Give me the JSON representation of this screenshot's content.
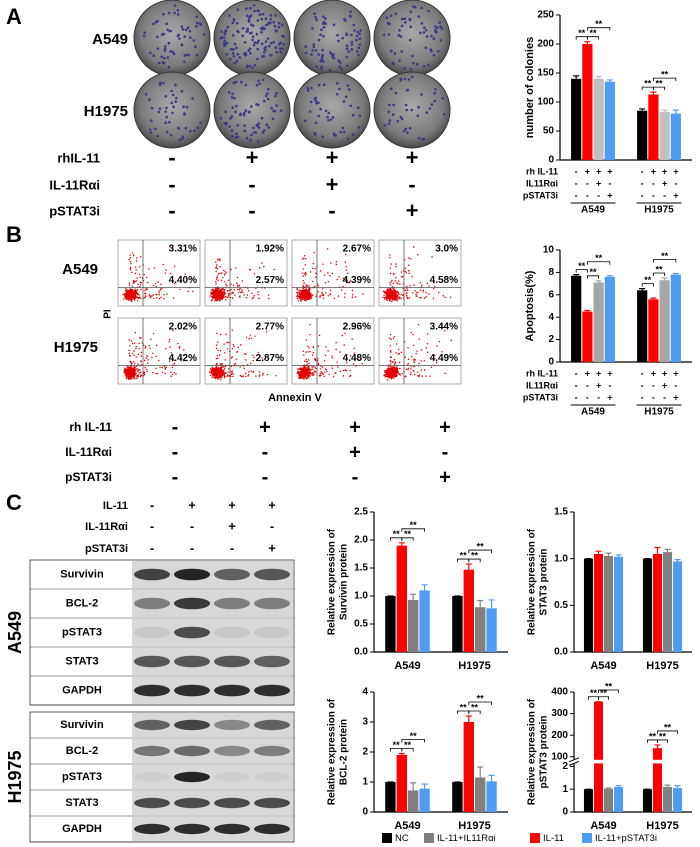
{
  "panel_a": {
    "label": "A",
    "rows": [
      "A549",
      "H1975"
    ],
    "treatments": [
      {
        "label": "rhIL-11",
        "signs": [
          "-",
          "+",
          "+",
          "+"
        ]
      },
      {
        "label": "IL-11Rαi",
        "signs": [
          "-",
          "-",
          "+",
          "-"
        ]
      },
      {
        "label": "pSTAT3i",
        "signs": [
          "-",
          "-",
          "-",
          "+"
        ]
      }
    ]
  },
  "panel_b": {
    "label": "B",
    "rows": [
      "A549",
      "H1975"
    ],
    "percentages": [
      [
        [
          "3.31%",
          "4.40%"
        ],
        [
          "1.92%",
          "2.57%"
        ],
        [
          "2.67%",
          "4.39%"
        ],
        [
          "3.0%",
          "4.58%"
        ]
      ],
      [
        [
          "2.02%",
          "4.42%"
        ],
        [
          "2.77%",
          "2.87%"
        ],
        [
          "2.96%",
          "4.48%"
        ],
        [
          "3.44%",
          "4.49%"
        ]
      ]
    ],
    "x_label": "Annexin V",
    "y_label": "PI",
    "treatments": [
      {
        "label": "rh IL-11",
        "signs": [
          "-",
          "+",
          "+",
          "+"
        ]
      },
      {
        "label": "IL-11Rαi",
        "signs": [
          "-",
          "-",
          "+",
          "-"
        ]
      },
      {
        "label": "pSTAT3i",
        "signs": [
          "-",
          "-",
          "-",
          "+"
        ]
      }
    ]
  },
  "panel_c": {
    "label": "C",
    "treatments": [
      {
        "label": "IL-11",
        "signs": [
          "-",
          "+",
          "+",
          "+"
        ]
      },
      {
        "label": "IL-11Rαi",
        "signs": [
          "-",
          "-",
          "+",
          "-"
        ]
      },
      {
        "label": "pSTAT3i",
        "signs": [
          "-",
          "-",
          "-",
          "+"
        ]
      }
    ],
    "blots": [
      {
        "cell_line": "A549",
        "bands": [
          "Survivin",
          "BCL-2",
          "pSTAT3",
          "STAT3",
          "GAPDH"
        ]
      },
      {
        "cell_line": "H1975",
        "bands": [
          "Survivin",
          "BCL-2",
          "pSTAT3",
          "STAT3",
          "GAPDH"
        ]
      }
    ]
  },
  "chart_data": [
    {
      "type": "bar",
      "y_label": [
        "number of colonies"
      ],
      "categories": [
        "A549",
        "H1975"
      ],
      "series": [
        {
          "color": "#000000",
          "values": [
            140,
            85
          ],
          "errors": [
            5,
            3
          ]
        },
        {
          "color": "#ff0000",
          "values": [
            200,
            113
          ],
          "errors": [
            4,
            4
          ]
        },
        {
          "color": "#c0c0c0",
          "values": [
            140,
            83
          ],
          "errors": [
            4,
            3
          ]
        },
        {
          "color": "#4f9cf5",
          "values": [
            135,
            80
          ],
          "errors": [
            3,
            6
          ]
        }
      ],
      "ylim": [
        0,
        250
      ],
      "yticks": [
        0,
        50,
        100,
        150,
        200,
        250
      ],
      "treatment_rows": [
        {
          "label": "rh IL-11",
          "signs": [
            "-",
            "+",
            "+",
            "+"
          ]
        },
        {
          "label": "IL11Rαi",
          "signs": [
            "-",
            "-",
            "+",
            "-"
          ]
        },
        {
          "label": "pSTAT3i",
          "signs": [
            "-",
            "-",
            "-",
            "+"
          ]
        }
      ],
      "significance": [
        {
          "label": "**",
          "category": "A549",
          "pair": [
            0,
            1
          ]
        },
        {
          "label": "**",
          "category": "A549",
          "pair": [
            1,
            2
          ]
        },
        {
          "label": "**",
          "category": "A549",
          "pair": [
            1,
            3
          ]
        },
        {
          "label": "**",
          "category": "H1975",
          "pair": [
            0,
            1
          ]
        },
        {
          "label": "**",
          "category": "H1975",
          "pair": [
            1,
            2
          ]
        },
        {
          "label": "**",
          "category": "H1975",
          "pair": [
            1,
            3
          ]
        }
      ]
    },
    {
      "type": "bar",
      "y_label": [
        "Apoptosis(%)"
      ],
      "categories": [
        "A549",
        "H1975"
      ],
      "series": [
        {
          "color": "#000000",
          "values": [
            7.7,
            6.4
          ],
          "errors": [
            0.1,
            0.15
          ]
        },
        {
          "color": "#ff0000",
          "values": [
            4.5,
            5.6
          ],
          "errors": [
            0.1,
            0.1
          ]
        },
        {
          "color": "#a6a6a6",
          "values": [
            7.1,
            7.3
          ],
          "errors": [
            0.15,
            0.2
          ]
        },
        {
          "color": "#4f9cf5",
          "values": [
            7.6,
            7.8
          ],
          "errors": [
            0.1,
            0.1
          ]
        }
      ],
      "ylim": [
        0,
        10
      ],
      "yticks": [
        0,
        2,
        4,
        6,
        8,
        10
      ],
      "treatment_rows": [
        {
          "label": "rh IL-11",
          "signs": [
            "-",
            "+",
            "+",
            "+"
          ]
        },
        {
          "label": "IL11Rαi",
          "signs": [
            "-",
            "-",
            "+",
            "-"
          ]
        },
        {
          "label": "pSTAT3i",
          "signs": [
            "-",
            "-",
            "-",
            "+"
          ]
        }
      ],
      "significance": [
        {
          "label": "**",
          "category": "A549",
          "pair": [
            0,
            1
          ]
        },
        {
          "label": "**",
          "category": "A549",
          "pair": [
            1,
            2
          ]
        },
        {
          "label": "**",
          "category": "A549",
          "pair": [
            1,
            3
          ]
        },
        {
          "label": "**",
          "category": "H1975",
          "pair": [
            0,
            1
          ]
        },
        {
          "label": "**",
          "category": "H1975",
          "pair": [
            1,
            2
          ]
        },
        {
          "label": "**",
          "category": "H1975",
          "pair": [
            1,
            3
          ]
        }
      ]
    },
    {
      "type": "bar",
      "y_label": [
        "Relative expression of",
        "Survivin protein"
      ],
      "categories": [
        "A549",
        "H1975"
      ],
      "series": [
        {
          "name": "NC",
          "color": "#000000",
          "values": [
            1.0,
            1.0
          ],
          "errors": [
            0,
            0
          ]
        },
        {
          "name": "IL-11",
          "color": "#ff0000",
          "values": [
            1.9,
            1.47
          ],
          "errors": [
            0.05,
            0.1
          ]
        },
        {
          "name": "IL-11+IL11Rαi",
          "color": "#808080",
          "values": [
            0.93,
            0.8
          ],
          "errors": [
            0.1,
            0.12
          ]
        },
        {
          "name": "IL-11+pSTAT3i",
          "color": "#4f9cf5",
          "values": [
            1.1,
            0.78
          ],
          "errors": [
            0.1,
            0.15
          ]
        }
      ],
      "ylim": [
        0,
        2.5
      ],
      "yticks": [
        {
          "value": 0,
          "label": "0.0"
        },
        0.5,
        {
          "value": 1,
          "label": "1.0"
        },
        1.5,
        {
          "value": 2,
          "label": "2.0"
        },
        2.5
      ],
      "significance": [
        {
          "label": "**",
          "category": "A549",
          "pair": [
            0,
            1
          ]
        },
        {
          "label": "**",
          "category": "A549",
          "pair": [
            1,
            2
          ]
        },
        {
          "label": "**",
          "category": "A549",
          "pair": [
            1,
            3
          ]
        },
        {
          "label": "**",
          "category": "H1975",
          "pair": [
            0,
            1
          ]
        },
        {
          "label": "**",
          "category": "H1975",
          "pair": [
            1,
            2
          ]
        },
        {
          "label": "**",
          "category": "H1975",
          "pair": [
            1,
            3
          ]
        }
      ]
    },
    {
      "type": "bar",
      "y_label": [
        "Relative expression of",
        "STAT3 protein"
      ],
      "categories": [
        "A549",
        "H1975"
      ],
      "series": [
        {
          "name": "NC",
          "color": "#000000",
          "values": [
            1.0,
            1.0
          ],
          "errors": [
            0,
            0
          ]
        },
        {
          "name": "IL-11",
          "color": "#ff0000",
          "values": [
            1.05,
            1.05
          ],
          "errors": [
            0.03,
            0.07
          ]
        },
        {
          "name": "IL-11+IL11Rαi",
          "color": "#808080",
          "values": [
            1.03,
            1.07
          ],
          "errors": [
            0.03,
            0.03
          ]
        },
        {
          "name": "IL-11+pSTAT3i",
          "color": "#4f9cf5",
          "values": [
            1.02,
            0.97
          ],
          "errors": [
            0.02,
            0.02
          ]
        }
      ],
      "ylim": [
        0,
        1.5
      ],
      "yticks": [
        {
          "value": 0,
          "label": "0.0"
        },
        0.5,
        {
          "value": 1,
          "label": "1.0"
        },
        1.5
      ]
    },
    {
      "type": "bar",
      "y_label": [
        "Relative expression of",
        "BCL-2 protein"
      ],
      "categories": [
        "A549",
        "H1975"
      ],
      "series": [
        {
          "name": "NC",
          "color": "#000000",
          "values": [
            1.0,
            1.0
          ],
          "errors": [
            0,
            0
          ]
        },
        {
          "name": "IL-11",
          "color": "#ff0000",
          "values": [
            1.9,
            3.0
          ],
          "errors": [
            0.05,
            0.2
          ]
        },
        {
          "name": "IL-11+IL11Rαi",
          "color": "#808080",
          "values": [
            0.72,
            1.15
          ],
          "errors": [
            0.25,
            0.35
          ]
        },
        {
          "name": "IL-11+pSTAT3i",
          "color": "#4f9cf5",
          "values": [
            0.78,
            1.02
          ],
          "errors": [
            0.15,
            0.2
          ]
        }
      ],
      "ylim": [
        0,
        4
      ],
      "yticks": [
        0,
        1,
        2,
        3,
        4
      ],
      "significance": [
        {
          "label": "**",
          "category": "A549",
          "pair": [
            0,
            1
          ]
        },
        {
          "label": "**",
          "category": "A549",
          "pair": [
            1,
            2
          ]
        },
        {
          "label": "**",
          "category": "A549",
          "pair": [
            1,
            3
          ]
        },
        {
          "label": "**",
          "category": "H1975",
          "pair": [
            0,
            1
          ]
        },
        {
          "label": "**",
          "category": "H1975",
          "pair": [
            1,
            2
          ]
        },
        {
          "label": "**",
          "category": "H1975",
          "pair": [
            1,
            3
          ]
        }
      ]
    },
    {
      "type": "bar",
      "y_label": [
        "Relative expression of",
        "pSTAT3 protein"
      ],
      "categories": [
        "A549",
        "H1975"
      ],
      "series": [
        {
          "name": "NC",
          "color": "#000000",
          "values": [
            1.0,
            1.0
          ],
          "errors": [
            0,
            0
          ]
        },
        {
          "name": "IL-11",
          "color": "#ff0000",
          "values": [
            355,
            140
          ],
          "errors": [
            0,
            15
          ]
        },
        {
          "name": "IL-11+IL11Rαi",
          "color": "#808080",
          "values": [
            1.02,
            1.1
          ],
          "errors": [
            0.03,
            0.08
          ]
        },
        {
          "name": "IL-11+pSTAT3i",
          "color": "#4f9cf5",
          "values": [
            1.1,
            1.05
          ],
          "errors": [
            0.06,
            0.1
          ]
        }
      ],
      "ylim": [
        0,
        400
      ],
      "axis_break": [
        2,
        100
      ],
      "yticks": [
        0,
        1,
        2,
        100,
        200,
        300,
        400
      ],
      "significance": [
        {
          "label": "**",
          "category": "A549",
          "pair": [
            0,
            1
          ]
        },
        {
          "label": "**",
          "category": "A549",
          "pair": [
            1,
            2
          ]
        },
        {
          "label": "**",
          "category": "A549",
          "pair": [
            1,
            3
          ]
        },
        {
          "label": "**",
          "category": "H1975",
          "pair": [
            0,
            1
          ]
        },
        {
          "label": "**",
          "category": "H1975",
          "pair": [
            1,
            2
          ]
        },
        {
          "label": "**",
          "category": "H1975",
          "pair": [
            1,
            3
          ]
        }
      ]
    }
  ]
}
